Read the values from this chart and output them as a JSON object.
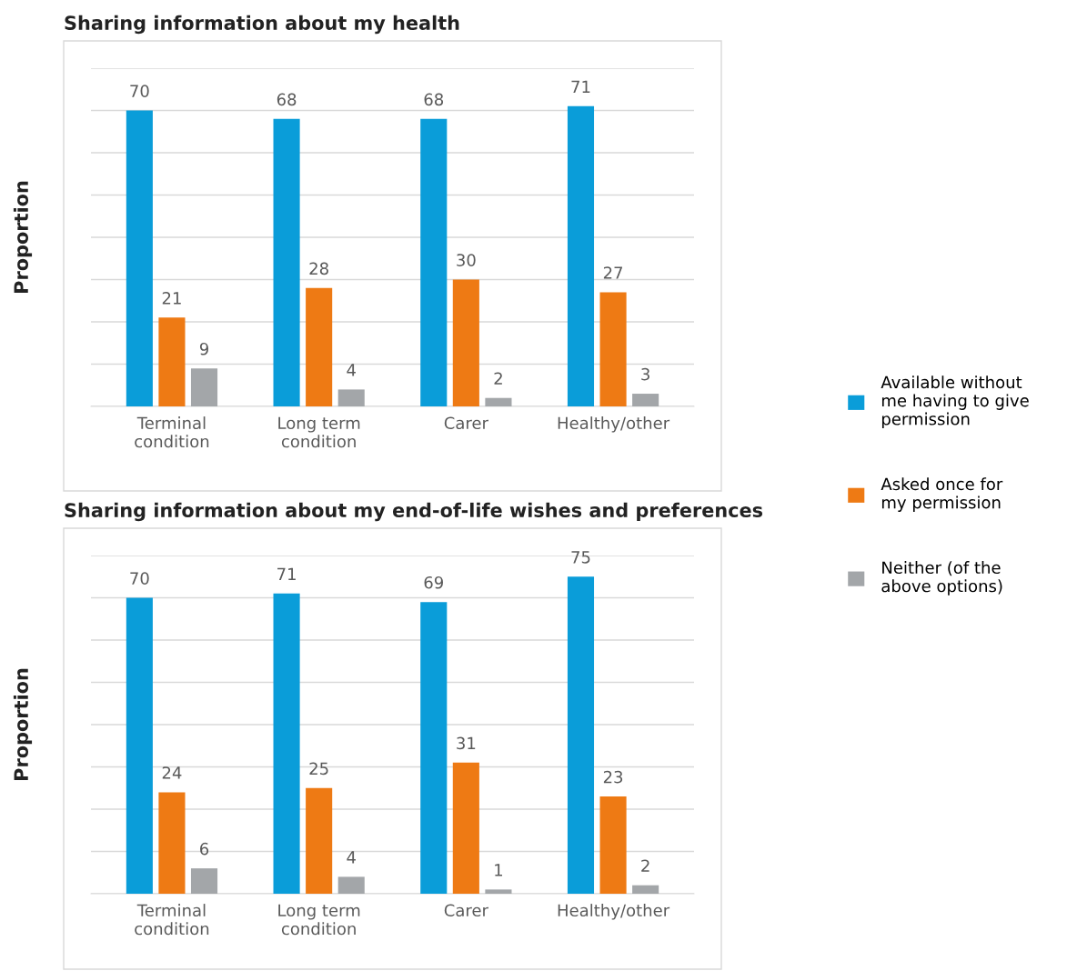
{
  "chart_data": [
    {
      "type": "bar",
      "title": "Sharing information about my health",
      "ylabel": "Proportion",
      "categories": [
        "Terminal\ncondition",
        "Long term\ncondition",
        "Carer",
        "Healthy/other"
      ],
      "series": [
        {
          "name": "Available without\nme having to give\npermission",
          "color": "#0a9dd9",
          "values": [
            70,
            68,
            68,
            71
          ]
        },
        {
          "name": "Asked once for\nmy permission",
          "color": "#ee7a14",
          "values": [
            21,
            28,
            30,
            27
          ]
        },
        {
          "name": "Neither (of the\nabove options)",
          "color": "#a3a6a9",
          "values": [
            9,
            4,
            2,
            3
          ]
        }
      ],
      "ylim": [
        0,
        80
      ],
      "yticks": [
        {
          "value": 0,
          "label": null
        },
        {
          "value": 10,
          "label": null
        },
        {
          "value": 20,
          "label": null
        },
        {
          "value": 30,
          "label": null
        },
        {
          "value": 40,
          "label": null
        },
        {
          "value": 50,
          "label": null
        },
        {
          "value": 60,
          "label": null
        },
        {
          "value": 70,
          "label": null
        },
        {
          "value": 80,
          "label": null
        }
      ],
      "tick_labels": "x",
      "grid": "y",
      "data_labels": true,
      "legend": "right"
    },
    {
      "type": "bar",
      "title": "Sharing information about my end-of-life wishes and preferences",
      "ylabel": "Proportion",
      "categories": [
        "Terminal\ncondition",
        "Long term\ncondition",
        "Carer",
        "Healthy/other"
      ],
      "series": [
        {
          "color": "#0a9dd9",
          "values": [
            70,
            71,
            69,
            75
          ]
        },
        {
          "color": "#ee7a14",
          "values": [
            24,
            25,
            31,
            23
          ]
        },
        {
          "color": "#a3a6a9",
          "values": [
            6,
            4,
            1,
            2
          ]
        }
      ],
      "ylim": [
        0,
        80
      ],
      "yticks": [
        {
          "value": 0,
          "label": null
        },
        {
          "value": 10,
          "label": null
        },
        {
          "value": 20,
          "label": null
        },
        {
          "value": 30,
          "label": null
        },
        {
          "value": 40,
          "label": null
        },
        {
          "value": 50,
          "label": null
        },
        {
          "value": 60,
          "label": null
        },
        {
          "value": 70,
          "label": null
        },
        {
          "value": 80,
          "label": null
        }
      ],
      "tick_labels": "x",
      "grid": "y",
      "data_labels": true,
      "legend": false
    }
  ]
}
